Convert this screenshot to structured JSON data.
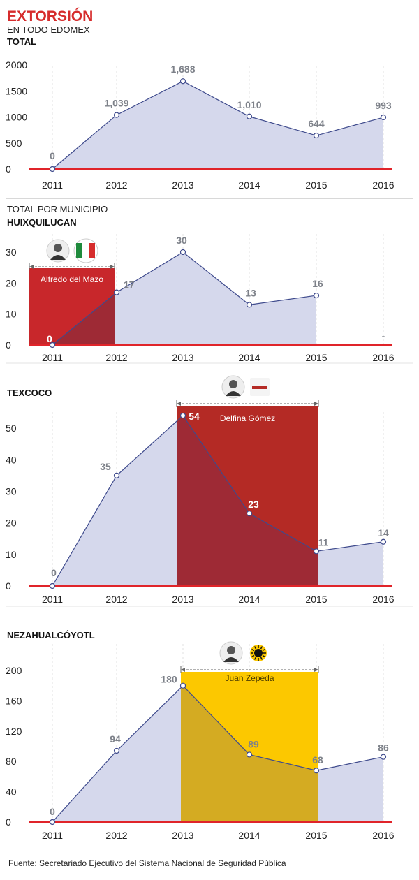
{
  "header": {
    "title": "EXTORSIÓN",
    "subtitle": "EN TODO EDOMEX",
    "section_total": "TOTAL",
    "section_municipio": "TOTAL POR MUNICIPIO"
  },
  "source": "Fuente: Secretariado Ejecutivo del Sistema Nacional de Seguridad Pública",
  "colors": {
    "area": "#d5d8ec",
    "line": "#3e4a8c",
    "baseline": "#e0242a",
    "pri_box": "#c8272b",
    "morena_box": "#b42a25",
    "prd_box": "#fcc800",
    "overlap_red": "#9e2a35",
    "overlap_yellow": "#d4ab22",
    "value_label": "#7d8189"
  },
  "chart_data": [
    {
      "type": "area",
      "title": "TOTAL",
      "x": [
        "2011",
        "2012",
        "2013",
        "2014",
        "2015",
        "2016"
      ],
      "y_ticks": [
        0,
        500,
        1000,
        1500,
        2000
      ],
      "ylim": [
        0,
        2000
      ],
      "values": [
        0,
        1039,
        1688,
        1010,
        644,
        993
      ],
      "labels": [
        "0",
        "1,039",
        "1,688",
        "1,010",
        "644",
        "993"
      ],
      "grid": "vertical-dashed"
    },
    {
      "type": "area",
      "title": "HUIXQUILUCAN",
      "x": [
        "2011",
        "2012",
        "2013",
        "2014",
        "2015",
        "2016"
      ],
      "y_ticks": [
        0,
        10,
        20,
        30
      ],
      "ylim": [
        0,
        30
      ],
      "values": [
        0,
        17,
        30,
        13,
        16,
        null
      ],
      "labels": [
        "0",
        "17",
        "30",
        "13",
        "16",
        "-"
      ],
      "grid": "vertical-dashed",
      "highlight": {
        "name": "Alfredo del Mazo",
        "party": "PRI",
        "icon": "pri-logo-icon",
        "from": "2011",
        "to": "2012",
        "color": "#c8272b"
      }
    },
    {
      "type": "area",
      "title": "TEXCOCO",
      "x": [
        "2011",
        "2012",
        "2013",
        "2014",
        "2015",
        "2016"
      ],
      "y_ticks": [
        0,
        10,
        20,
        30,
        40,
        50
      ],
      "ylim": [
        0,
        56
      ],
      "values": [
        0,
        35,
        54,
        23,
        11,
        14
      ],
      "labels": [
        "0",
        "35",
        "54",
        "23",
        "11",
        "14"
      ],
      "grid": "vertical-dashed",
      "highlight": {
        "name": "Delfina Gómez",
        "party": "morena",
        "icon": "morena-logo-icon",
        "from": "2013",
        "to": "2015",
        "color": "#b42a25"
      }
    },
    {
      "type": "area",
      "title": "NEZAHUALCÓYOTL",
      "x": [
        "2011",
        "2012",
        "2013",
        "2014",
        "2015",
        "2016"
      ],
      "y_ticks": [
        0,
        40,
        80,
        120,
        160,
        200
      ],
      "ylim": [
        0,
        200
      ],
      "values": [
        0,
        94,
        180,
        89,
        68,
        86
      ],
      "labels": [
        "0",
        "94",
        "180",
        "89",
        "68",
        "86"
      ],
      "grid": "vertical-dashed",
      "highlight": {
        "name": "Juan Zepeda",
        "party": "PRD",
        "icon": "prd-sun-logo-icon",
        "from": "2013",
        "to": "2015",
        "color": "#fcc800"
      }
    }
  ]
}
